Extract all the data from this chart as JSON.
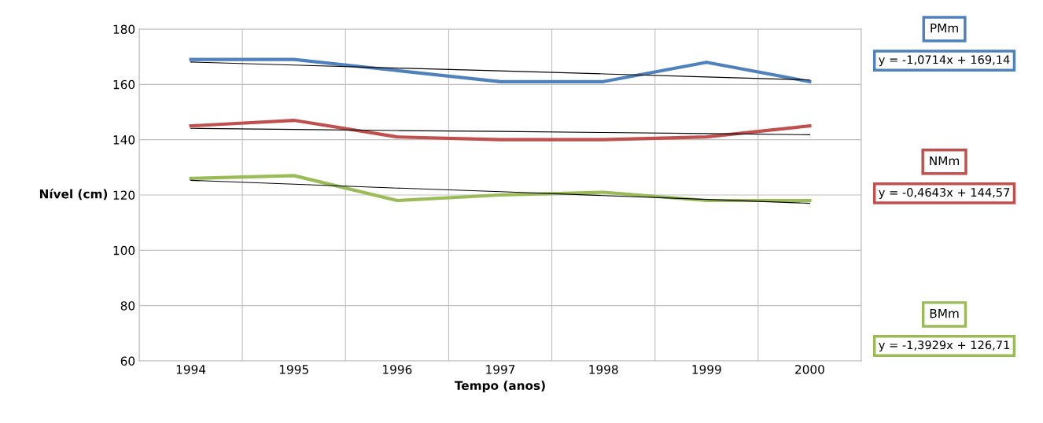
{
  "chart_data": {
    "type": "line",
    "xlabel": "Tempo (anos)",
    "ylabel": "Nível (cm)",
    "categories": [
      "1994",
      "1995",
      "1996",
      "1997",
      "1998",
      "1999",
      "2000"
    ],
    "series": [
      {
        "name": "PMm",
        "color": "#4f81bd",
        "values": [
          169,
          169,
          165,
          161,
          161,
          168,
          161
        ]
      },
      {
        "name": "NMm",
        "color": "#c0504d",
        "values": [
          145,
          147,
          141,
          140,
          140,
          141,
          145
        ]
      },
      {
        "name": "BMm",
        "color": "#9bbb59",
        "values": [
          126,
          127,
          118,
          120,
          121,
          118,
          118
        ]
      },
      {
        "type": "line",
        "color": "#000000",
        "values": [
          168.1,
          167.0,
          165.9,
          164.9,
          163.8,
          162.7,
          161.6
        ]
      },
      {
        "type": "line",
        "color": "#000000",
        "values": [
          144.1,
          143.7,
          143.3,
          143.0,
          142.6,
          142.2,
          141.8
        ]
      },
      {
        "type": "line",
        "color": "#000000",
        "values": [
          125.3,
          123.9,
          122.5,
          121.2,
          119.8,
          118.4,
          117.0
        ]
      }
    ],
    "annotations": [
      "y = -1,0714x + 169,14",
      "y = -0,4643x + 144,57",
      "y = -1,3929x + 126,71"
    ],
    "ylim": [
      60,
      180
    ],
    "yticks": [
      60,
      80,
      100,
      120,
      140,
      160,
      180
    ],
    "grid": true,
    "legend": "right",
    "marker": "none"
  }
}
